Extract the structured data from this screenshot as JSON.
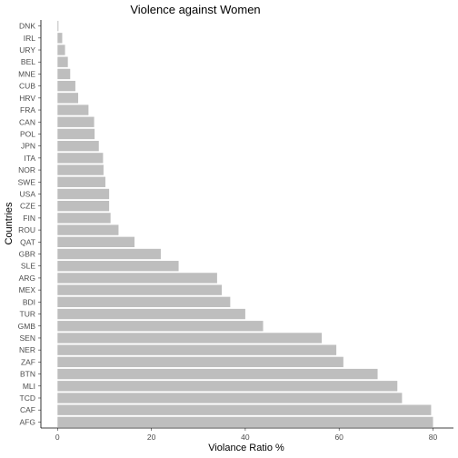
{
  "chart_data": {
    "type": "bar",
    "orientation": "horizontal",
    "title": "Violence against Women",
    "xlabel": "Violance Ratio %",
    "ylabel": "Countries",
    "xlim": [
      0,
      80
    ],
    "xticks": [
      "0",
      "20",
      "40",
      "60",
      "80"
    ],
    "grid": false,
    "bar_color": "#bebebe",
    "categories": [
      "DNK",
      "IRL",
      "URY",
      "BEL",
      "MNE",
      "CUB",
      "HRV",
      "FRA",
      "CAN",
      "POL",
      "JPN",
      "ITA",
      "NOR",
      "SWE",
      "USA",
      "CZE",
      "FIN",
      "ROU",
      "QAT",
      "GBR",
      "SLE",
      "ARG",
      "MEX",
      "BDI",
      "TUR",
      "GMB",
      "SEN",
      "NER",
      "ZAF",
      "BTN",
      "MLI",
      "TCD",
      "CAF",
      "AFG"
    ],
    "values": [
      0.2,
      1.0,
      1.6,
      2.2,
      2.7,
      3.8,
      4.4,
      6.6,
      7.8,
      7.9,
      8.8,
      9.7,
      9.8,
      10.2,
      11.0,
      11.0,
      11.3,
      13.0,
      16.4,
      22.0,
      25.8,
      34.0,
      35.0,
      36.8,
      40.0,
      43.8,
      56.3,
      59.4,
      60.9,
      68.2,
      72.4,
      73.4,
      79.6,
      80.0
    ]
  }
}
